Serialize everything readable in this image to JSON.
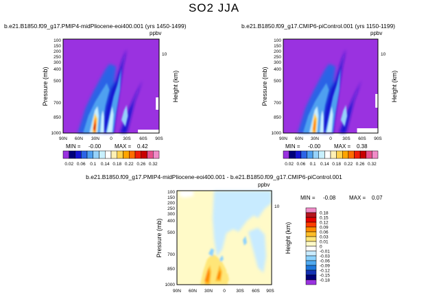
{
  "figure_title": "SO2 JJA",
  "chart_data": [
    {
      "type": "heatmap",
      "title": "b.e21.B1850.f09_g17.PMIP4-midPliocene-eoi400.001 (yrs 1450-1499)",
      "units": "ppbv",
      "xlabel": "",
      "ylabel": "Pressure (mb)",
      "y2label": "Height (km)",
      "x_ticks": [
        "90N",
        "60N",
        "30N",
        "0",
        "30S",
        "60S",
        "90S"
      ],
      "y_ticks": [
        "100",
        "150",
        "200",
        "250",
        "300",
        "400",
        "500",
        "700",
        "850",
        "1000"
      ],
      "y2_ticks": [
        "10"
      ],
      "ylim": [
        1000,
        100
      ],
      "min_label": "MIN =",
      "min_value": "-0.00",
      "max_label": "MAX =",
      "max_value": "0.42",
      "colorbar": {
        "orientation": "horizontal",
        "labels": [
          "0.02",
          "0.06",
          "0.1",
          "0.14",
          "0.18",
          "0.22",
          "0.26",
          "0.32"
        ],
        "colors": [
          "#9a32e0",
          "#00007a",
          "#1414d2",
          "#2c64e6",
          "#50a0f0",
          "#96d2fa",
          "#c8f0ff",
          "#ffffff",
          "#fff0b4",
          "#ffd250",
          "#ffa500",
          "#ff6e00",
          "#f01e0a",
          "#c80000",
          "#e6508c",
          "#f08cc8"
        ]
      },
      "background_color": "#9a32e0"
    },
    {
      "type": "heatmap",
      "title": "b.e21.B1850.f09_g17.CMIP6-piControl.001 (yrs 1150-1199)",
      "units": "ppbv",
      "xlabel": "",
      "ylabel": "Pressure (mb)",
      "y2label": "Height (km)",
      "x_ticks": [
        "90N",
        "60N",
        "30N",
        "0",
        "30S",
        "60S",
        "90S"
      ],
      "y_ticks": [
        "100",
        "150",
        "200",
        "250",
        "300",
        "400",
        "500",
        "700",
        "850",
        "1000"
      ],
      "y2_ticks": [
        "10"
      ],
      "ylim": [
        1000,
        100
      ],
      "min_label": "MIN =",
      "min_value": "-0.00",
      "max_label": "MAX =",
      "max_value": "0.38",
      "colorbar": {
        "orientation": "horizontal",
        "labels": [
          "0.02",
          "0.06",
          "0.1",
          "0.14",
          "0.18",
          "0.22",
          "0.26",
          "0.32"
        ],
        "colors": [
          "#9a32e0",
          "#00007a",
          "#1414d2",
          "#2c64e6",
          "#50a0f0",
          "#96d2fa",
          "#c8f0ff",
          "#ffffff",
          "#fff0b4",
          "#ffd250",
          "#ffa500",
          "#ff6e00",
          "#f01e0a",
          "#c80000",
          "#e6508c",
          "#f08cc8"
        ]
      },
      "background_color": "#9a32e0"
    },
    {
      "type": "heatmap",
      "title": "b.e21.B1850.f09_g17.PMIP4-midPliocene-eoi400.001 - b.e21.B1850.f09_g17.CMIP6-piControl.001",
      "units": "ppbv",
      "xlabel": "",
      "ylabel": "Pressure (mb)",
      "y2label": "Height (km)",
      "x_ticks": [
        "90N",
        "60N",
        "30N",
        "0",
        "30S",
        "60S",
        "90S"
      ],
      "y_ticks": [
        "100",
        "150",
        "200",
        "250",
        "300",
        "400",
        "500",
        "700",
        "850",
        "1000"
      ],
      "y2_ticks": [
        "10"
      ],
      "ylim": [
        1000,
        100
      ],
      "min_label": "MIN =",
      "min_value": "-0.08",
      "max_label": "MAX =",
      "max_value": "0.07",
      "colorbar": {
        "orientation": "vertical",
        "labels": [
          "0.18",
          "0.15",
          "0.12",
          "0.09",
          "0.06",
          "0.03",
          "0.01",
          "0",
          "-0.01",
          "-0.03",
          "-0.06",
          "-0.09",
          "-0.12",
          "-0.15",
          "-0.18"
        ],
        "colors": [
          "#f08cc8",
          "#b4141e",
          "#e60000",
          "#ff3c00",
          "#ff8c00",
          "#ffbe28",
          "#ffe678",
          "#fffac8",
          "#ffffff",
          "#c8ebff",
          "#8cd2ff",
          "#50aaf0",
          "#1e78dc",
          "#1432b4",
          "#000078",
          "#9a32e0"
        ]
      },
      "background_color": "#fffac8"
    }
  ]
}
